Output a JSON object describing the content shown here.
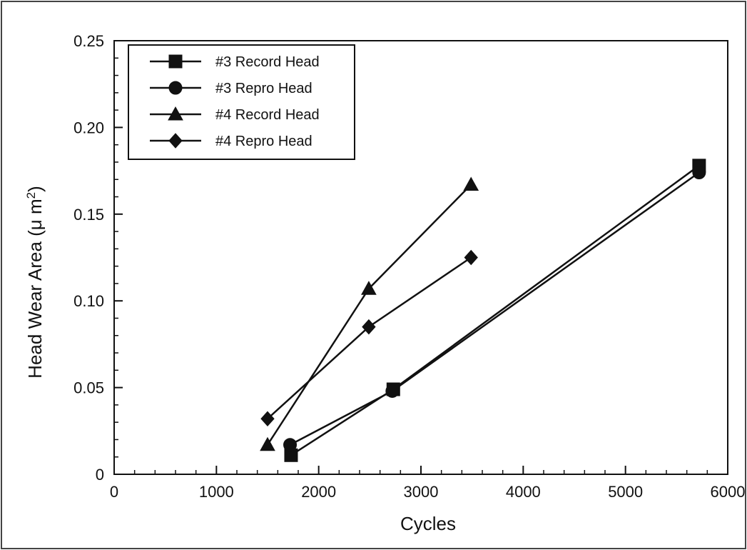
{
  "chart_data": {
    "type": "line",
    "xlabel": "Cycles",
    "ylabel_main": "Head Wear Area (",
    "ylabel_mu": "μ",
    "ylabel_unit": " m",
    "ylabel_sup": "2",
    "ylabel_close": ")",
    "xlim": [
      0,
      6000
    ],
    "ylim": [
      0,
      0.25
    ],
    "x_ticks": [
      {
        "value": 0,
        "label": "0"
      },
      {
        "value": 1000,
        "label": "1000"
      },
      {
        "value": 2000,
        "label": "2000"
      },
      {
        "value": 3000,
        "label": "3000"
      },
      {
        "value": 4000,
        "label": "4000"
      },
      {
        "value": 5000,
        "label": "5000"
      },
      {
        "value": 6000,
        "label": "6000"
      }
    ],
    "y_ticks": [
      {
        "value": 0,
        "label": "0"
      },
      {
        "value": 0.05,
        "label": "0.05"
      },
      {
        "value": 0.1,
        "label": "0.10"
      },
      {
        "value": 0.15,
        "label": "0.15"
      },
      {
        "value": 0.2,
        "label": "0.20"
      },
      {
        "value": 0.25,
        "label": "0.25"
      }
    ],
    "legend_placement": "top-left",
    "grid": false,
    "series": [
      {
        "name": "#3 Record Head",
        "marker": "square",
        "points": [
          [
            1730,
            0.011
          ],
          [
            2730,
            0.049
          ],
          [
            5720,
            0.178
          ]
        ]
      },
      {
        "name": "#3 Repro Head",
        "marker": "circle",
        "points": [
          [
            1720,
            0.017
          ],
          [
            2720,
            0.048
          ],
          [
            5720,
            0.174
          ]
        ]
      },
      {
        "name": "#4 Record Head",
        "marker": "triangle",
        "points": [
          [
            1500,
            0.017
          ],
          [
            2490,
            0.107
          ],
          [
            3490,
            0.167
          ]
        ]
      },
      {
        "name": "#4 Repro Head",
        "marker": "diamond",
        "points": [
          [
            1500,
            0.032
          ],
          [
            2490,
            0.085
          ],
          [
            3490,
            0.125
          ]
        ]
      }
    ]
  }
}
